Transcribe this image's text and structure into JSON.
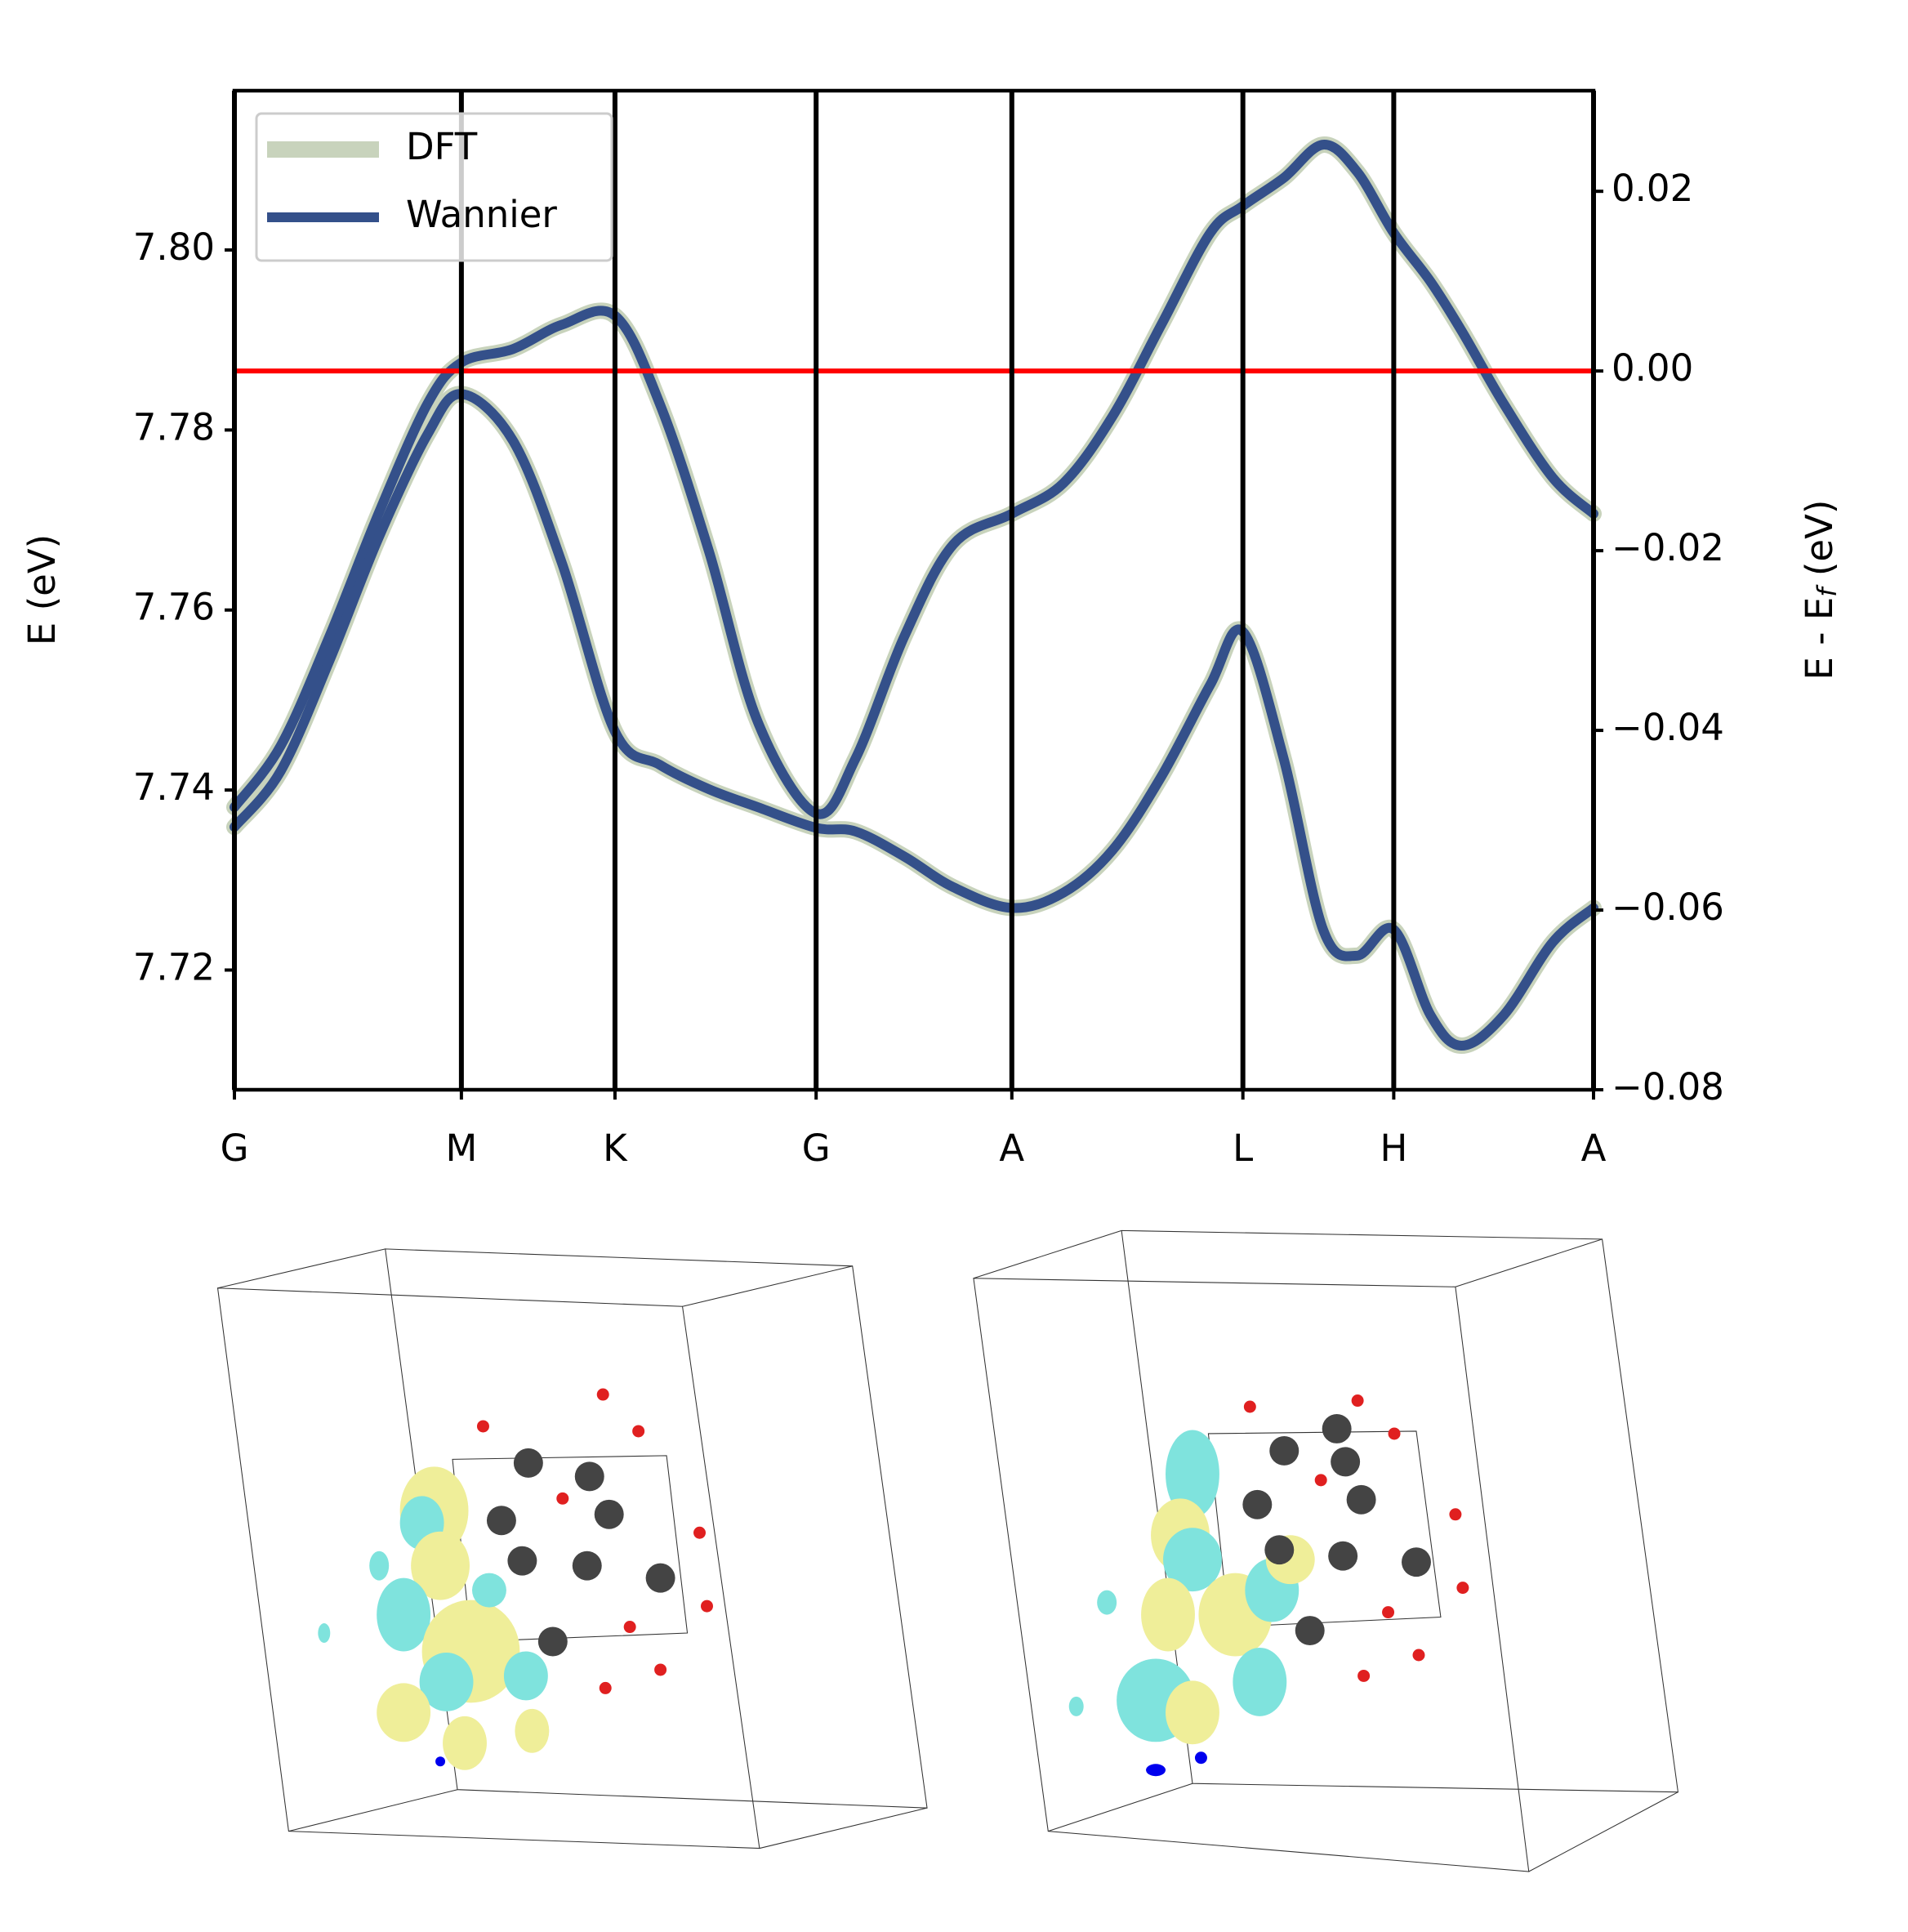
{
  "chart_data": {
    "type": "line",
    "ylabel": "E (eV)",
    "y2label_parts": [
      "E - E",
      "f",
      " (eV)"
    ],
    "x": [
      0,
      0.034,
      0.07,
      0.106,
      0.142,
      0.167,
      0.205,
      0.241,
      0.28,
      0.313,
      0.349,
      0.385,
      0.428,
      0.457,
      0.493,
      0.529,
      0.572,
      0.61,
      0.646,
      0.682,
      0.718,
      0.742,
      0.772,
      0.801,
      0.826,
      0.853,
      0.88,
      0.903,
      0.934,
      0.97,
      1.0
    ],
    "xlim": [
      0,
      1
    ],
    "xticks": [
      {
        "value": 0,
        "label": "G"
      },
      {
        "value": 0.167,
        "label": "M"
      },
      {
        "value": 0.28,
        "label": "K"
      },
      {
        "value": 0.428,
        "label": "G"
      },
      {
        "value": 0.572,
        "label": "A"
      },
      {
        "value": 0.742,
        "label": "L"
      },
      {
        "value": 0.853,
        "label": "H"
      },
      {
        "value": 1.0,
        "label": "A"
      }
    ],
    "vlines_at_xticks": true,
    "ylim": [
      7.7067,
      7.8177
    ],
    "yticks": [
      7.72,
      7.74,
      7.76,
      7.78,
      {
        "value": 7.8,
        "label": "7.80"
      }
    ],
    "y2lim": [
      -0.08,
      0.0312
    ],
    "y2ticks": [
      {
        "value": -0.08,
        "label": "−0.08"
      },
      {
        "value": -0.06,
        "label": "−0.06"
      },
      {
        "value": -0.04,
        "label": "−0.04"
      },
      {
        "value": -0.02,
        "label": "−0.02"
      },
      {
        "value": 0,
        "label": "0.00"
      },
      0.02
    ],
    "fermi_level": {
      "value": 0,
      "axis": "y2",
      "color": "#ff0000"
    },
    "legend": "upper left",
    "series": [
      {
        "name": "DFT",
        "color": "#c8d3bc",
        "bands": [
          [
            7.7381,
            7.7449,
            7.7571,
            7.7707,
            7.7829,
            7.7875,
            7.789,
            7.7917,
            7.7927,
            7.7829,
            7.7666,
            7.7476,
            7.7374,
            7.7435,
            7.7571,
            7.7673,
            7.7707,
            7.7741,
            7.7815,
            7.7917,
            7.8019,
            7.8049,
            7.808,
            7.8117,
            7.8087,
            7.8019,
            7.7965,
            7.791,
            7.7829,
            7.7747,
            7.7707
          ],
          [
            7.7359,
            7.7421,
            7.7544,
            7.768,
            7.7795,
            7.784,
            7.7788,
            7.7652,
            7.7465,
            7.7428,
            7.7401,
            7.7381,
            7.7358,
            7.7354,
            7.7326,
            7.7292,
            7.7269,
            7.7286,
            7.7333,
            7.7415,
            7.7517,
            7.7576,
            7.7435,
            7.7245,
            7.7216,
            7.7245,
            7.715,
            7.7116,
            7.715,
            7.7231,
            7.7269
          ]
        ]
      },
      {
        "name": "Wannier",
        "color": "#34508a",
        "bands": [
          [
            7.7381,
            7.7449,
            7.7571,
            7.7707,
            7.7829,
            7.7875,
            7.789,
            7.7917,
            7.7927,
            7.7829,
            7.7666,
            7.7476,
            7.7374,
            7.7435,
            7.7571,
            7.7673,
            7.7707,
            7.7741,
            7.7815,
            7.7917,
            7.8019,
            7.8049,
            7.808,
            7.8117,
            7.8087,
            7.8019,
            7.7965,
            7.791,
            7.7829,
            7.7747,
            7.7707
          ],
          [
            7.7359,
            7.7421,
            7.7544,
            7.768,
            7.7795,
            7.784,
            7.7788,
            7.7652,
            7.7465,
            7.7428,
            7.7401,
            7.7381,
            7.7358,
            7.7354,
            7.7326,
            7.7292,
            7.7269,
            7.7286,
            7.7333,
            7.7415,
            7.7517,
            7.7576,
            7.7435,
            7.7245,
            7.7216,
            7.7245,
            7.715,
            7.7116,
            7.715,
            7.7231,
            7.7269
          ]
        ]
      }
    ]
  }
}
